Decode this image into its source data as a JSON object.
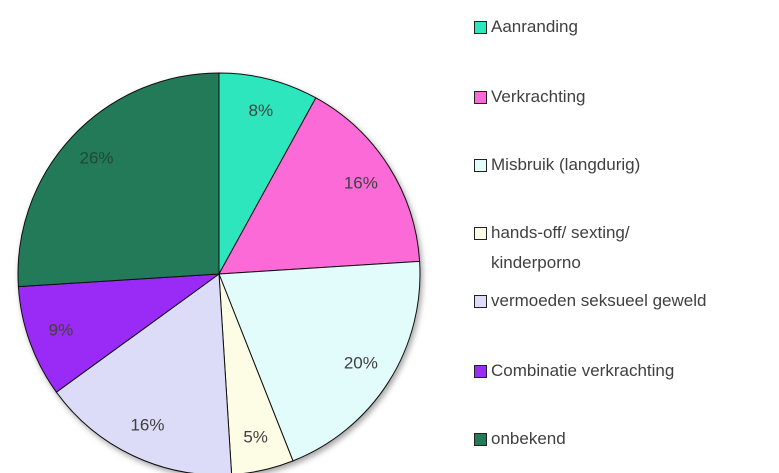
{
  "chart_data": {
    "type": "pie",
    "categories": [
      "Aanranding",
      "Verkrachting",
      "Misbruik (langdurig)",
      "hands-off/ sexting/ kinderporno",
      "vermoeden seksueel geweld",
      "Combinatie verkrachting",
      "onbekend"
    ],
    "values": [
      8,
      16,
      20,
      5,
      16,
      9,
      26
    ],
    "value_labels": [
      "8%",
      "16%",
      "20%",
      "5%",
      "16%",
      "9%",
      "26%"
    ],
    "colors": [
      "#2de6bd",
      "#fb6ad6",
      "#e2fbfb",
      "#fdfce4",
      "#dcdcf8",
      "#9a2cf6",
      "#227a58"
    ],
    "legend": "right"
  }
}
